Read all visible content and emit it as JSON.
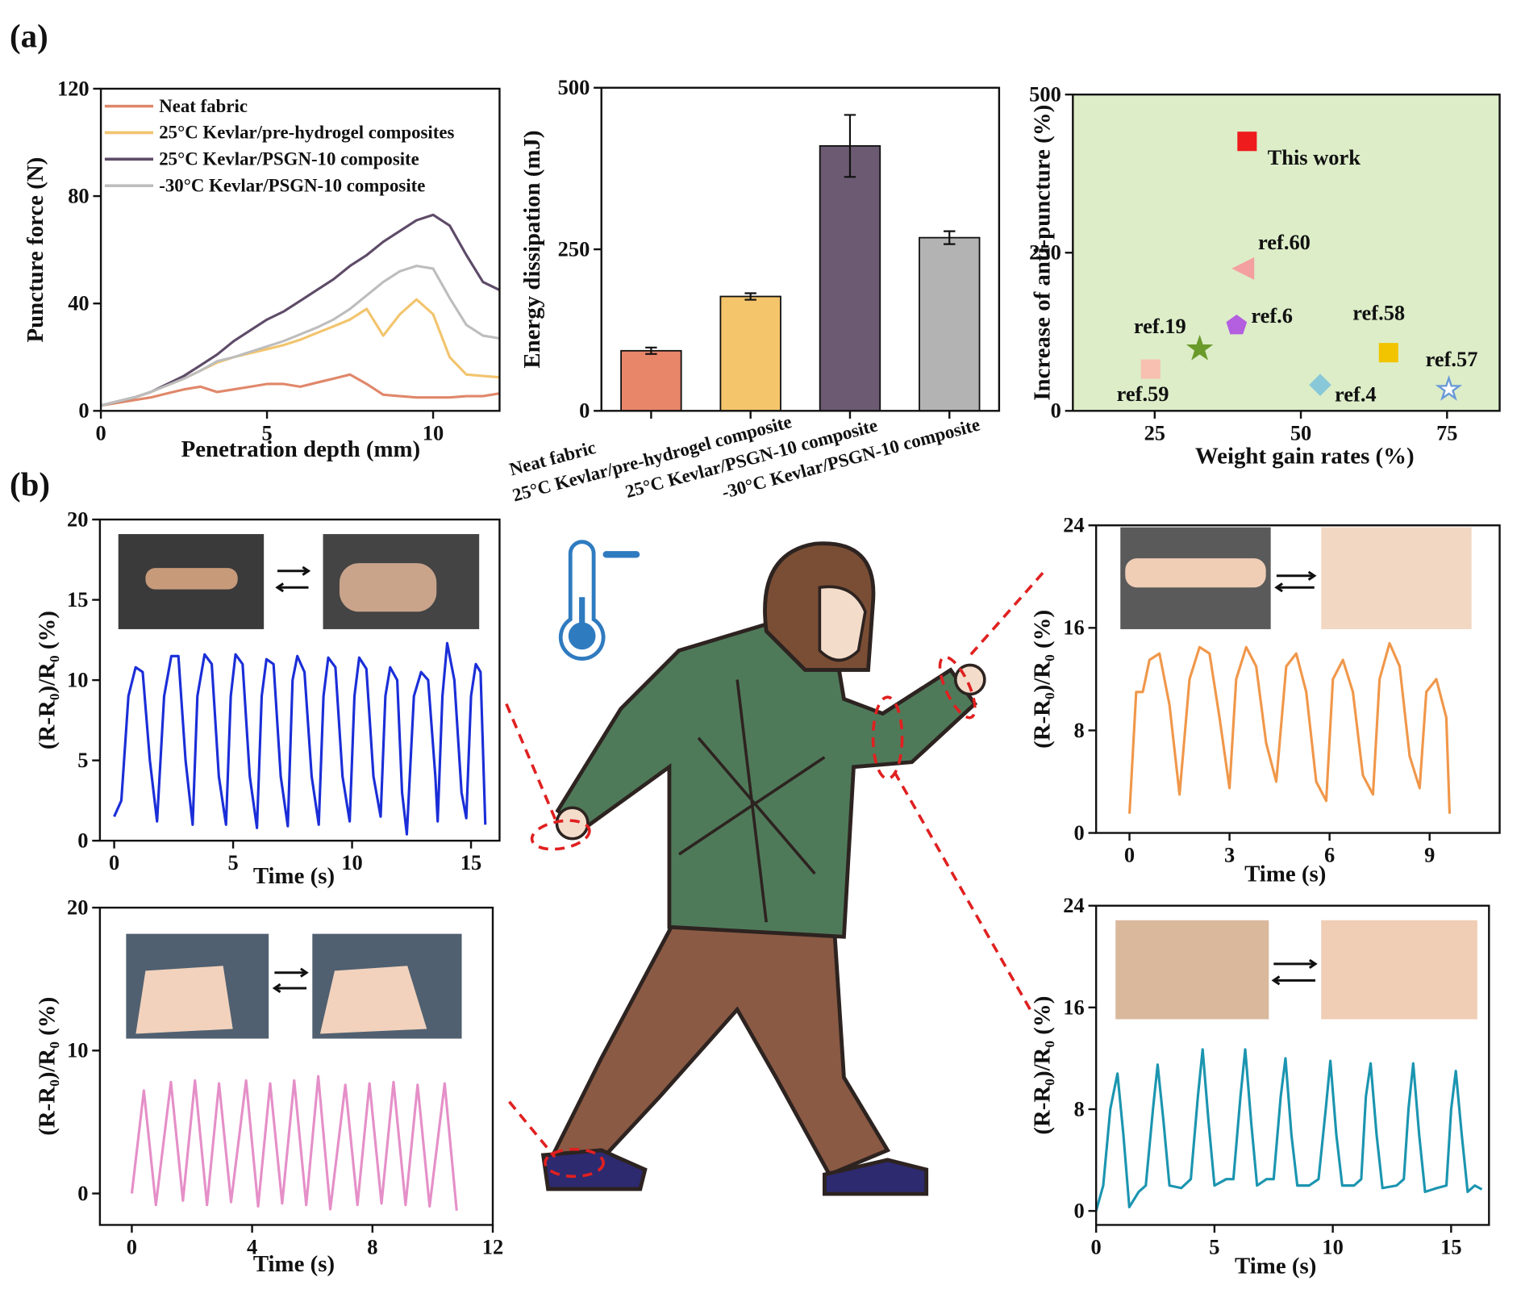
{
  "panel_labels": [
    "(a)",
    "(b)"
  ],
  "chart_data": [
    {
      "type": "line",
      "xlabel": "Penetration depth (mm)",
      "ylabel": "Puncture force (N)",
      "x": [
        0,
        0.5,
        1,
        1.5,
        2,
        2.5,
        3,
        3.5,
        4,
        4.5,
        5,
        5.5,
        6,
        6.5,
        7,
        7.5,
        8,
        8.5,
        9,
        9.5,
        10,
        10.5,
        11,
        11.5,
        12
      ],
      "xlim": [
        0,
        12
      ],
      "xticks": [
        0,
        5,
        10
      ],
      "ylim": [
        0,
        120
      ],
      "yticks": [
        0,
        40,
        80,
        120
      ],
      "series": [
        {
          "name": "Neat fabric",
          "color": "#e0876a",
          "values": [
            2,
            3,
            4,
            5,
            6.5,
            8,
            9,
            7,
            8,
            9,
            10,
            10,
            9,
            10.5,
            12,
            13.5,
            10,
            6,
            5.5,
            5,
            5,
            5,
            5.5,
            5.5,
            6.5
          ]
        },
        {
          "name": "25°C Kevlar/pre-hydrogel composites",
          "color": "#f2c46d",
          "values": [
            2,
            3.5,
            5,
            7,
            9.5,
            12,
            15,
            18,
            20,
            21.5,
            23,
            24.5,
            26.5,
            29,
            31.5,
            34,
            38,
            28,
            36,
            41.5,
            36,
            20,
            13.5,
            13,
            12.5
          ]
        },
        {
          "name": "25°C Kevlar/PSGN-10  composite",
          "color": "#5e4b68",
          "values": [
            2,
            3.5,
            5,
            7,
            10,
            13,
            17,
            21,
            26,
            30,
            34,
            37,
            41,
            45,
            49,
            54,
            58,
            63,
            67,
            71,
            73,
            69,
            58,
            48,
            45
          ]
        },
        {
          "name": "-30°C Kevlar/PSGN-10  composite",
          "color": "#bdbdbd",
          "values": [
            2,
            3.5,
            5,
            7,
            9.5,
            12,
            15,
            18.5,
            20,
            22,
            24,
            26,
            28.5,
            31,
            34,
            38,
            43,
            48,
            52,
            54,
            53,
            42,
            32,
            28,
            27
          ]
        }
      ]
    },
    {
      "type": "bar",
      "ylabel": "Energy dissipation (mJ)",
      "categories": [
        "Neat fabric",
        "25°C Kevlar/pre-hydrogel composite",
        "25°C Kevlar/PSGN-10 composite",
        "-30°C Kevlar/PSGN-10 composite"
      ],
      "values": [
        93,
        177,
        410,
        268
      ],
      "errors": [
        5,
        5,
        48,
        10
      ],
      "colors": [
        "#e8866a",
        "#f5c56b",
        "#6b5a72",
        "#b3b3b3"
      ],
      "ylim": [
        0,
        500
      ],
      "yticks": [
        0,
        250,
        500
      ]
    },
    {
      "type": "scatter",
      "xlabel": "Weight gain rates (%)",
      "ylabel": "Increase of anti-puncture (%)",
      "background": "#dcedc8",
      "xlim": [
        11,
        84
      ],
      "xticks": [
        25,
        50,
        75
      ],
      "ylim": [
        0,
        500
      ],
      "yticks": [
        0,
        250,
        500
      ],
      "points": [
        {
          "label": "This work",
          "x": 40.8,
          "y": 426,
          "marker": "square",
          "color": "#ee1c1c"
        },
        {
          "label": "ref.60",
          "x": 40.2,
          "y": 225,
          "marker": "triangle-left",
          "color": "#f4a0a0"
        },
        {
          "label": "ref.6",
          "x": 39,
          "y": 135,
          "marker": "pentagon",
          "color": "#b45ee0"
        },
        {
          "label": "ref.19",
          "x": 32.7,
          "y": 98,
          "marker": "star",
          "color": "#6a9a2a"
        },
        {
          "label": "ref.59",
          "x": 24.3,
          "y": 66,
          "marker": "square",
          "color": "#f8c0b0"
        },
        {
          "label": "ref.4",
          "x": 53.3,
          "y": 41,
          "marker": "diamond",
          "color": "#88c8d8"
        },
        {
          "label": "ref.58",
          "x": 65,
          "y": 92,
          "marker": "square",
          "color": "#f2c400"
        },
        {
          "label": "ref.57",
          "x": 75.3,
          "y": 34,
          "marker": "star-open",
          "color": "#6a9ad8"
        }
      ]
    },
    {
      "type": "line",
      "xlabel": "Time (s)",
      "ylabel": "(R-R₀)/R₀ (%)",
      "x": [
        0,
        0.3,
        0.6,
        0.9,
        1.2,
        1.5,
        1.8,
        2.1,
        2.4,
        2.7,
        3.0,
        3.3,
        3.5,
        3.8,
        4.1,
        4.4,
        4.7,
        4.9,
        5.1,
        5.4,
        5.7,
        6.0,
        6.2,
        6.4,
        6.7,
        7.0,
        7.3,
        7.5,
        7.7,
        8.0,
        8.3,
        8.6,
        8.8,
        9.0,
        9.3,
        9.6,
        9.9,
        10.1,
        10.3,
        10.6,
        10.9,
        11.2,
        11.4,
        11.6,
        11.9,
        12.1,
        12.3,
        12.6,
        12.9,
        13.2,
        13.5,
        13.6,
        13.8,
        14.0,
        14.3,
        14.6,
        14.8,
        15.0,
        15.2,
        15.4,
        15.6
      ],
      "xlim": [
        -0.6,
        16.2
      ],
      "xticks": [
        0,
        5,
        10,
        15
      ],
      "ylim": [
        0,
        20
      ],
      "yticks": [
        0,
        5,
        10,
        15,
        20
      ],
      "series": [
        {
          "color": "#1a2ed8",
          "values": [
            1.5,
            2.5,
            9,
            10.8,
            10.5,
            5,
            1.2,
            9,
            11.5,
            11.5,
            5,
            1.0,
            9,
            11.6,
            11,
            4,
            1.0,
            9,
            11.6,
            11,
            4,
            0.8,
            9,
            11.3,
            11,
            4,
            0.9,
            10,
            11.5,
            10.5,
            4,
            1.0,
            9,
            11.4,
            10.8,
            4,
            1.2,
            9,
            11.4,
            10.7,
            4,
            1.5,
            9,
            10.8,
            10,
            3,
            0.4,
            9,
            10.5,
            10,
            4,
            1.2,
            9,
            12.3,
            10,
            3,
            1.4,
            9,
            11,
            10.5,
            1.0
          ]
        }
      ]
    },
    {
      "type": "line",
      "xlabel": "Time (s)",
      "ylabel": "(R-R₀)/R₀ (%)",
      "x": [
        0,
        0.2,
        0.4,
        0.6,
        0.9,
        1.2,
        1.5,
        1.8,
        2.1,
        2.4,
        2.7,
        3.0,
        3.2,
        3.5,
        3.8,
        4.1,
        4.4,
        4.7,
        5.0,
        5.3,
        5.6,
        5.9,
        6.1,
        6.4,
        6.7,
        7.0,
        7.3,
        7.5,
        7.8,
        8.1,
        8.4,
        8.7,
        8.9,
        9.2,
        9.5,
        9.6
      ],
      "xlim": [
        -1.0,
        11.1
      ],
      "xticks": [
        0,
        3,
        6,
        9
      ],
      "ylim": [
        0,
        24
      ],
      "yticks": [
        0,
        8,
        16,
        24
      ],
      "series": [
        {
          "color": "#f0974a",
          "values": [
            1.5,
            11,
            11,
            13.5,
            14,
            10,
            3,
            12,
            14.5,
            14,
            9,
            3.5,
            12,
            14.5,
            13,
            7,
            4,
            13,
            14,
            11,
            4,
            2.5,
            12,
            13.5,
            11,
            4.5,
            3,
            12,
            14.8,
            13,
            6,
            3.5,
            11,
            12,
            9,
            1.5
          ]
        }
      ]
    },
    {
      "type": "line",
      "xlabel": "Time (s)",
      "ylabel": "(R-R₀)/R₀ (%)",
      "x": [
        0,
        0.4,
        0.8,
        1.3,
        1.7,
        2.1,
        2.5,
        2.9,
        3.3,
        3.8,
        4.2,
        4.6,
        5.0,
        5.4,
        5.8,
        6.2,
        6.6,
        7.1,
        7.5,
        7.9,
        8.3,
        8.7,
        9.1,
        9.5,
        9.9,
        10.4,
        10.8
      ],
      "xlim": [
        -1.06,
        12
      ],
      "xticks": [
        0,
        4,
        8,
        12
      ],
      "ylim": [
        -2.2,
        20
      ],
      "yticks": [
        0,
        10,
        20
      ],
      "series": [
        {
          "color": "#e58fc8",
          "values": [
            0,
            7.2,
            -0.8,
            7.8,
            -0.5,
            7.9,
            -0.8,
            7.7,
            -0.6,
            7.9,
            -0.9,
            7.7,
            -0.7,
            7.9,
            -0.8,
            8.2,
            -1.1,
            7.6,
            -0.8,
            7.7,
            -0.7,
            7.8,
            -0.8,
            7.6,
            -0.9,
            7.7,
            -1.2
          ]
        }
      ]
    },
    {
      "type": "line",
      "xlabel": "Time (s)",
      "ylabel": "(R-R₀)/R₀ (%)",
      "x": [
        0,
        0.3,
        0.6,
        0.9,
        1.15,
        1.4,
        1.8,
        2.1,
        2.4,
        2.6,
        2.85,
        3.1,
        3.6,
        4.0,
        4.3,
        4.5,
        4.75,
        5.0,
        5.5,
        5.8,
        6.1,
        6.3,
        6.55,
        6.8,
        7.2,
        7.5,
        7.8,
        8.0,
        8.25,
        8.5,
        9.0,
        9.4,
        9.7,
        9.9,
        10.15,
        10.4,
        10.9,
        11.2,
        11.4,
        11.6,
        11.85,
        12.1,
        12.7,
        13.0,
        13.2,
        13.4,
        13.65,
        13.9,
        14.4,
        14.8,
        15.0,
        15.2,
        15.45,
        15.7,
        16.0,
        16.3
      ],
      "xlim": [
        0,
        16.6
      ],
      "xticks": [
        0,
        5,
        10,
        15
      ],
      "ylim": [
        -1.1,
        24
      ],
      "yticks": [
        0,
        8,
        16,
        24
      ],
      "series": [
        {
          "color": "#1b95b0",
          "values": [
            0,
            2,
            8,
            10.8,
            6,
            0.3,
            1.5,
            2,
            8,
            11.5,
            7,
            2,
            1.8,
            2.5,
            9,
            12.7,
            7,
            2,
            2.5,
            2.5,
            9,
            12.7,
            7,
            2,
            2.5,
            2.5,
            9,
            12,
            6,
            2,
            2,
            2.5,
            8,
            11.8,
            6,
            2,
            2,
            2.5,
            9,
            11.6,
            6,
            1.8,
            2,
            2.5,
            8,
            11.6,
            6,
            1.5,
            1.8,
            2,
            8,
            11,
            6,
            1.5,
            2,
            1.7
          ]
        }
      ]
    }
  ]
}
